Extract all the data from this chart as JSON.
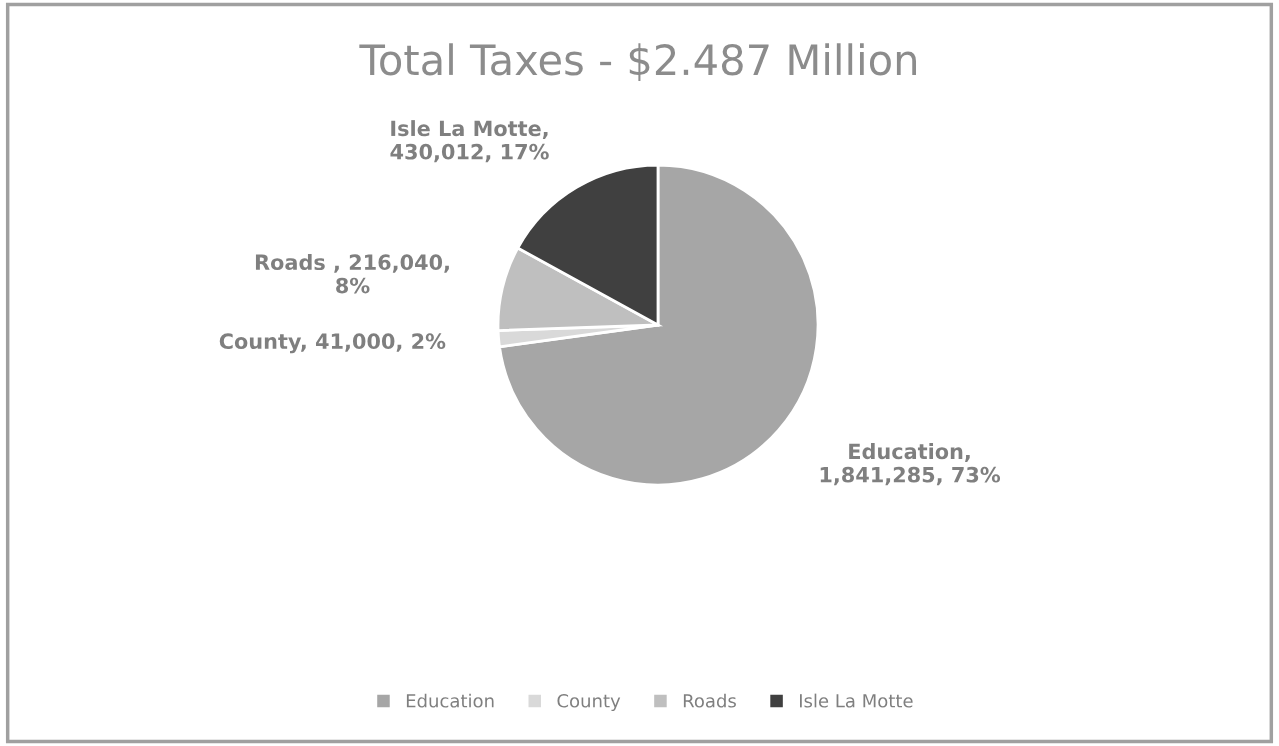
{
  "chart_data": {
    "type": "pie",
    "title": "Total Taxes - $2.487 Million",
    "categories": [
      "Education",
      "County",
      "Roads",
      "Isle La Motte"
    ],
    "values": [
      1841285,
      41000,
      216040,
      430012
    ],
    "colors": [
      "#a6a6a6",
      "#d9d9d9",
      "#bfbfbf",
      "#404040"
    ],
    "value_labels": [
      "Education,\n1,841,285, 73%",
      "County, 41,000, 2%",
      "Roads , 216,040,\n8%",
      "Isle La Motte,\n430,012, 17%"
    ],
    "legend": "bottom"
  }
}
